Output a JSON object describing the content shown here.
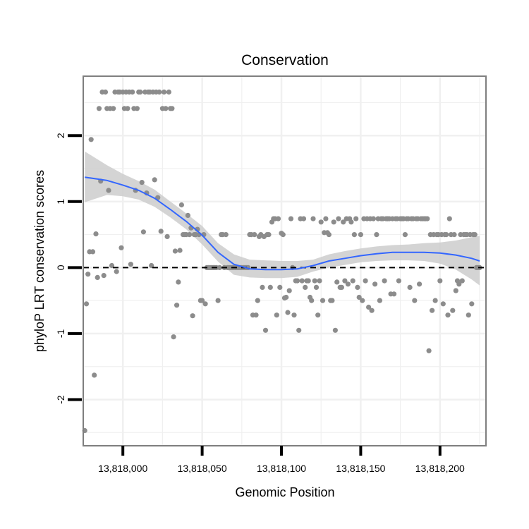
{
  "chart_data": {
    "type": "scatter",
    "title": "Conservation",
    "xlabel": "Genomic Position",
    "ylabel": "phyloP LRT conservation scores",
    "xlim": [
      13817975,
      13818229
    ],
    "ylim": [
      -2.7,
      2.9
    ],
    "x_ticks": [
      13818000,
      13818050,
      13818100,
      13818150,
      13818200
    ],
    "x_tick_labels": [
      "13,818,000",
      "13,818,050",
      "13,818,100",
      "13,818,150",
      "13,818,200"
    ],
    "y_ticks": [
      -2,
      -1,
      0,
      1,
      2
    ],
    "y_tick_labels": [
      "-2",
      "-1",
      "0",
      "1",
      "2"
    ],
    "reference_line": {
      "y": 0,
      "style": "dashed",
      "color": "#000000"
    },
    "colors": {
      "points": "#8c8c8c",
      "smooth_line": "#3366ff",
      "confidence_band": "#cccccc",
      "panel_background": "#ffffff",
      "grid": "#f0f0f0",
      "panel_border": "#7f7f7f"
    },
    "points": [
      [
        13817976,
        -2.47
      ],
      [
        13817977,
        -0.55
      ],
      [
        13817978,
        -0.1
      ],
      [
        13817979,
        0.24
      ],
      [
        13817980,
        1.94
      ],
      [
        13817981,
        0.24
      ],
      [
        13817982,
        -1.63
      ],
      [
        13817983,
        0.51
      ],
      [
        13817984,
        -0.15
      ],
      [
        13817985,
        2.41
      ],
      [
        13817986,
        1.31
      ],
      [
        13817987,
        2.66
      ],
      [
        13817988,
        -0.12
      ],
      [
        13817989,
        2.66
      ],
      [
        13817990,
        2.41
      ],
      [
        13817991,
        1.17
      ],
      [
        13817992,
        2.41
      ],
      [
        13817993,
        0.03
      ],
      [
        13817994,
        2.41
      ],
      [
        13817995,
        2.66
      ],
      [
        13817996,
        -0.06
      ],
      [
        13817997,
        2.66
      ],
      [
        13817998,
        2.66
      ],
      [
        13817999,
        0.3
      ],
      [
        13818000,
        2.66
      ],
      [
        13818001,
        2.41
      ],
      [
        13818002,
        2.66
      ],
      [
        13818003,
        2.41
      ],
      [
        13818004,
        2.66
      ],
      [
        13818005,
        0.05
      ],
      [
        13818006,
        2.66
      ],
      [
        13818007,
        2.41
      ],
      [
        13818008,
        1.17
      ],
      [
        13818009,
        2.41
      ],
      [
        13818010,
        2.66
      ],
      [
        13818011,
        2.66
      ],
      [
        13818012,
        1.29
      ],
      [
        13818013,
        0.54
      ],
      [
        13818014,
        2.66
      ],
      [
        13818015,
        1.13
      ],
      [
        13818016,
        2.66
      ],
      [
        13818017,
        2.66
      ],
      [
        13818018,
        0.03
      ],
      [
        13818019,
        2.66
      ],
      [
        13818020,
        1.33
      ],
      [
        13818021,
        2.66
      ],
      [
        13818022,
        1.06
      ],
      [
        13818023,
        2.66
      ],
      [
        13818024,
        0.55
      ],
      [
        13818025,
        2.41
      ],
      [
        13818026,
        2.66
      ],
      [
        13818027,
        2.41
      ],
      [
        13818028,
        0.47
      ],
      [
        13818029,
        2.66
      ],
      [
        13818030,
        2.41
      ],
      [
        13818031,
        2.41
      ],
      [
        13818032,
        -1.05
      ],
      [
        13818033,
        0.25
      ],
      [
        13818034,
        -0.57
      ],
      [
        13818035,
        -0.22
      ],
      [
        13818036,
        0.26
      ],
      [
        13818037,
        0.95
      ],
      [
        13818038,
        0.5
      ],
      [
        13818039,
        0.5
      ],
      [
        13818040,
        0.5
      ],
      [
        13818041,
        0.79
      ],
      [
        13818042,
        0.5
      ],
      [
        13818043,
        0.6
      ],
      [
        13818044,
        -0.73
      ],
      [
        13818045,
        0.5
      ],
      [
        13818046,
        0.5
      ],
      [
        13818047,
        0.58
      ],
      [
        13818048,
        0.5
      ],
      [
        13818049,
        -0.5
      ],
      [
        13818050,
        -0.5
      ],
      [
        13818051,
        0.5
      ],
      [
        13818052,
        -0.55
      ],
      [
        13818053,
        0.0
      ],
      [
        13818054,
        0.0
      ],
      [
        13818055,
        0.0
      ],
      [
        13818056,
        0.0
      ],
      [
        13818057,
        0.0
      ],
      [
        13818058,
        0.0
      ],
      [
        13818059,
        0.0
      ],
      [
        13818060,
        -0.5
      ],
      [
        13818061,
        0.0
      ],
      [
        13818062,
        0.5
      ],
      [
        13818063,
        0.5
      ],
      [
        13818064,
        0.0
      ],
      [
        13818065,
        0.5
      ],
      [
        13818066,
        0.0
      ],
      [
        13818067,
        0.0
      ],
      [
        13818068,
        0.0
      ],
      [
        13818069,
        0.0
      ],
      [
        13818070,
        0.0
      ],
      [
        13818071,
        0.0
      ],
      [
        13818072,
        0.0
      ],
      [
        13818073,
        0.0
      ],
      [
        13818074,
        0.0
      ],
      [
        13818075,
        0.0
      ],
      [
        13818076,
        0.0
      ],
      [
        13818077,
        0.0
      ],
      [
        13818078,
        0.0
      ],
      [
        13818079,
        0.0
      ],
      [
        13818080,
        0.5
      ],
      [
        13818081,
        0.5
      ],
      [
        13818082,
        -0.72
      ],
      [
        13818083,
        0.5
      ],
      [
        13818084,
        -0.72
      ],
      [
        13818085,
        -0.5
      ],
      [
        13818086,
        0.47
      ],
      [
        13818087,
        0.5
      ],
      [
        13818088,
        -0.3
      ],
      [
        13818089,
        0.47
      ],
      [
        13818090,
        -0.95
      ],
      [
        13818091,
        0.5
      ],
      [
        13818092,
        0.5
      ],
      [
        13818093,
        -0.3
      ],
      [
        13818094,
        0.69
      ],
      [
        13818095,
        0.74
      ],
      [
        13818096,
        0.74
      ],
      [
        13818097,
        -0.72
      ],
      [
        13818098,
        0.74
      ],
      [
        13818099,
        -0.3
      ],
      [
        13818100,
        0.52
      ],
      [
        13818101,
        0.5
      ],
      [
        13818102,
        -0.46
      ],
      [
        13818103,
        -0.45
      ],
      [
        13818104,
        -0.68
      ],
      [
        13818105,
        -0.35
      ],
      [
        13818106,
        0.74
      ],
      [
        13818107,
        0.0
      ],
      [
        13818108,
        -0.72
      ],
      [
        13818109,
        -0.2
      ],
      [
        13818110,
        -0.2
      ],
      [
        13818111,
        -0.95
      ],
      [
        13818112,
        0.74
      ],
      [
        13818113,
        -0.2
      ],
      [
        13818114,
        0.74
      ],
      [
        13818115,
        -0.3
      ],
      [
        13818116,
        -0.2
      ],
      [
        13818117,
        -0.2
      ],
      [
        13818118,
        -0.45
      ],
      [
        13818119,
        -0.5
      ],
      [
        13818120,
        0.74
      ],
      [
        13818121,
        -0.2
      ],
      [
        13818122,
        -0.3
      ],
      [
        13818123,
        -0.72
      ],
      [
        13818124,
        -0.2
      ],
      [
        13818125,
        0.69
      ],
      [
        13818126,
        -0.5
      ],
      [
        13818127,
        0.53
      ],
      [
        13818128,
        0.74
      ],
      [
        13818129,
        0.53
      ],
      [
        13818130,
        0.5
      ],
      [
        13818131,
        -0.5
      ],
      [
        13818132,
        -0.5
      ],
      [
        13818133,
        0.69
      ],
      [
        13818134,
        -0.95
      ],
      [
        13818135,
        -0.22
      ],
      [
        13818136,
        0.74
      ],
      [
        13818137,
        -0.3
      ],
      [
        13818138,
        -0.3
      ],
      [
        13818139,
        0.69
      ],
      [
        13818140,
        -0.2
      ],
      [
        13818141,
        0.74
      ],
      [
        13818142,
        -0.25
      ],
      [
        13818143,
        0.74
      ],
      [
        13818144,
        0.69
      ],
      [
        13818145,
        -0.2
      ],
      [
        13818146,
        0.5
      ],
      [
        13818147,
        0.74
      ],
      [
        13818148,
        -0.3
      ],
      [
        13818149,
        -0.45
      ],
      [
        13818150,
        0.5
      ],
      [
        13818151,
        -0.5
      ],
      [
        13818152,
        0.74
      ],
      [
        13818153,
        -0.2
      ],
      [
        13818154,
        0.74
      ],
      [
        13818155,
        -0.6
      ],
      [
        13818156,
        0.74
      ],
      [
        13818157,
        -0.65
      ],
      [
        13818158,
        0.74
      ],
      [
        13818159,
        -0.25
      ],
      [
        13818160,
        0.5
      ],
      [
        13818161,
        0.74
      ],
      [
        13818162,
        -0.5
      ],
      [
        13818163,
        0.74
      ],
      [
        13818164,
        0.74
      ],
      [
        13818165,
        -0.2
      ],
      [
        13818166,
        0.74
      ],
      [
        13818167,
        0.74
      ],
      [
        13818168,
        0.74
      ],
      [
        13818169,
        -0.4
      ],
      [
        13818170,
        0.74
      ],
      [
        13818171,
        -0.4
      ],
      [
        13818172,
        0.74
      ],
      [
        13818173,
        0.74
      ],
      [
        13818174,
        -0.2
      ],
      [
        13818175,
        0.74
      ],
      [
        13818176,
        0.74
      ],
      [
        13818177,
        0.74
      ],
      [
        13818178,
        0.5
      ],
      [
        13818179,
        0.74
      ],
      [
        13818180,
        0.74
      ],
      [
        13818181,
        -0.3
      ],
      [
        13818182,
        0.74
      ],
      [
        13818183,
        0.74
      ],
      [
        13818184,
        -0.5
      ],
      [
        13818185,
        0.74
      ],
      [
        13818186,
        0.74
      ],
      [
        13818187,
        -0.25
      ],
      [
        13818188,
        0.74
      ],
      [
        13818189,
        0.74
      ],
      [
        13818190,
        0.74
      ],
      [
        13818191,
        0.74
      ],
      [
        13818192,
        0.74
      ],
      [
        13818193,
        -1.26
      ],
      [
        13818194,
        0.5
      ],
      [
        13818195,
        -0.65
      ],
      [
        13818196,
        0.5
      ],
      [
        13818197,
        -0.5
      ],
      [
        13818198,
        0.5
      ],
      [
        13818199,
        0.5
      ],
      [
        13818200,
        -0.2
      ],
      [
        13818201,
        0.5
      ],
      [
        13818202,
        -0.55
      ],
      [
        13818203,
        0.5
      ],
      [
        13818204,
        0.5
      ],
      [
        13818205,
        -0.72
      ],
      [
        13818206,
        0.74
      ],
      [
        13818207,
        0.5
      ],
      [
        13818208,
        -0.65
      ],
      [
        13818209,
        0.5
      ],
      [
        13818210,
        -0.35
      ],
      [
        13818211,
        -0.2
      ],
      [
        13818212,
        -0.25
      ],
      [
        13818213,
        0.5
      ],
      [
        13818214,
        -0.2
      ],
      [
        13818215,
        0.5
      ],
      [
        13818216,
        0.5
      ],
      [
        13818217,
        0.5
      ],
      [
        13818218,
        -0.72
      ],
      [
        13818219,
        0.5
      ],
      [
        13818220,
        -0.55
      ],
      [
        13818221,
        0.5
      ],
      [
        13818222,
        0.5
      ],
      [
        13818223,
        0.0
      ],
      [
        13818224,
        0.0
      ],
      [
        13818225,
        0.0
      ]
    ],
    "smooth": {
      "x": [
        13817976,
        13817990,
        13818000,
        13818010,
        13818020,
        13818030,
        13818040,
        13818050,
        13818060,
        13818070,
        13818080,
        13818090,
        13818100,
        13818110,
        13818120,
        13818130,
        13818140,
        13818150,
        13818160,
        13818170,
        13818180,
        13818190,
        13818200,
        13818210,
        13818220,
        13818225
      ],
      "y": [
        1.37,
        1.32,
        1.25,
        1.17,
        1.05,
        0.88,
        0.7,
        0.49,
        0.23,
        0.05,
        -0.02,
        -0.03,
        -0.03,
        -0.02,
        0.03,
        0.1,
        0.14,
        0.18,
        0.21,
        0.23,
        0.23,
        0.23,
        0.22,
        0.19,
        0.14,
        0.1
      ],
      "lo": [
        0.99,
        1.1,
        1.08,
        1.03,
        0.92,
        0.76,
        0.58,
        0.35,
        0.09,
        -0.11,
        -0.15,
        -0.16,
        -0.16,
        -0.14,
        -0.06,
        0.0,
        0.04,
        0.08,
        0.1,
        0.11,
        0.11,
        0.1,
        0.06,
        -0.03,
        -0.18,
        -0.27
      ],
      "hi": [
        1.76,
        1.55,
        1.42,
        1.31,
        1.18,
        1.0,
        0.82,
        0.63,
        0.37,
        0.2,
        0.12,
        0.11,
        0.1,
        0.1,
        0.12,
        0.2,
        0.25,
        0.29,
        0.32,
        0.34,
        0.35,
        0.37,
        0.38,
        0.41,
        0.46,
        0.48
      ]
    }
  }
}
